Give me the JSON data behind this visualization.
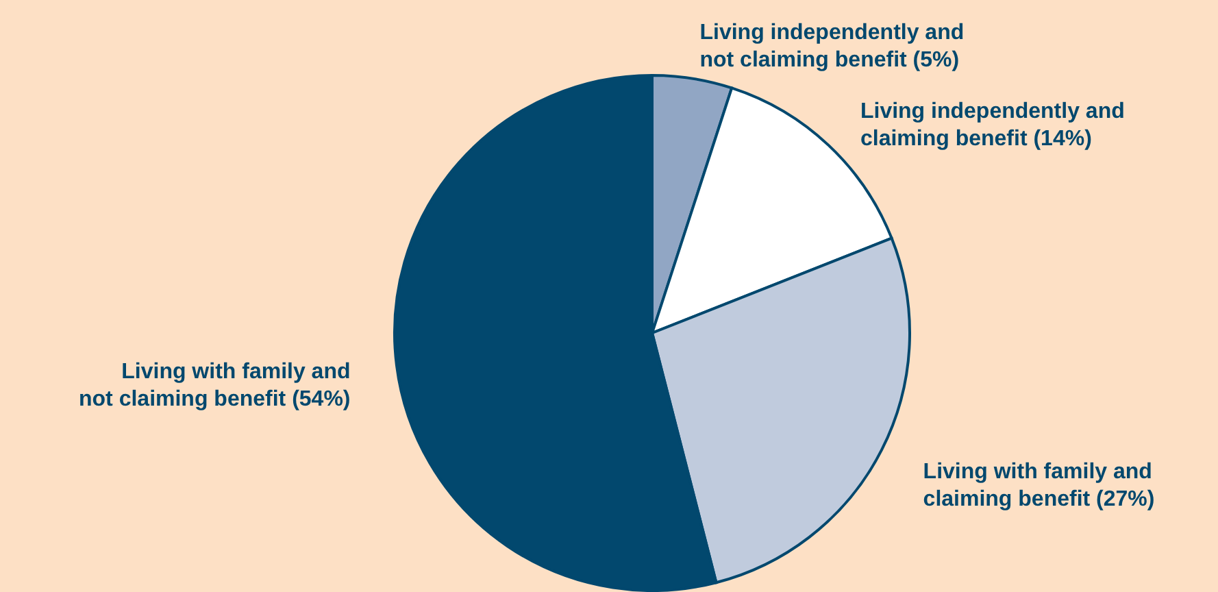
{
  "chart_data": {
    "type": "pie",
    "categories": [
      "Living independently and not claiming benefit (5%)",
      "Living independently and claiming benefit (14%)",
      "Living with family and claiming benefit (27%)",
      "Living with family and not claiming benefit (54%)"
    ],
    "values": [
      5,
      14,
      27,
      54
    ],
    "colors": [
      "#91a6c4",
      "#ffffff",
      "#c0cbdd",
      "#02486e"
    ]
  }
}
